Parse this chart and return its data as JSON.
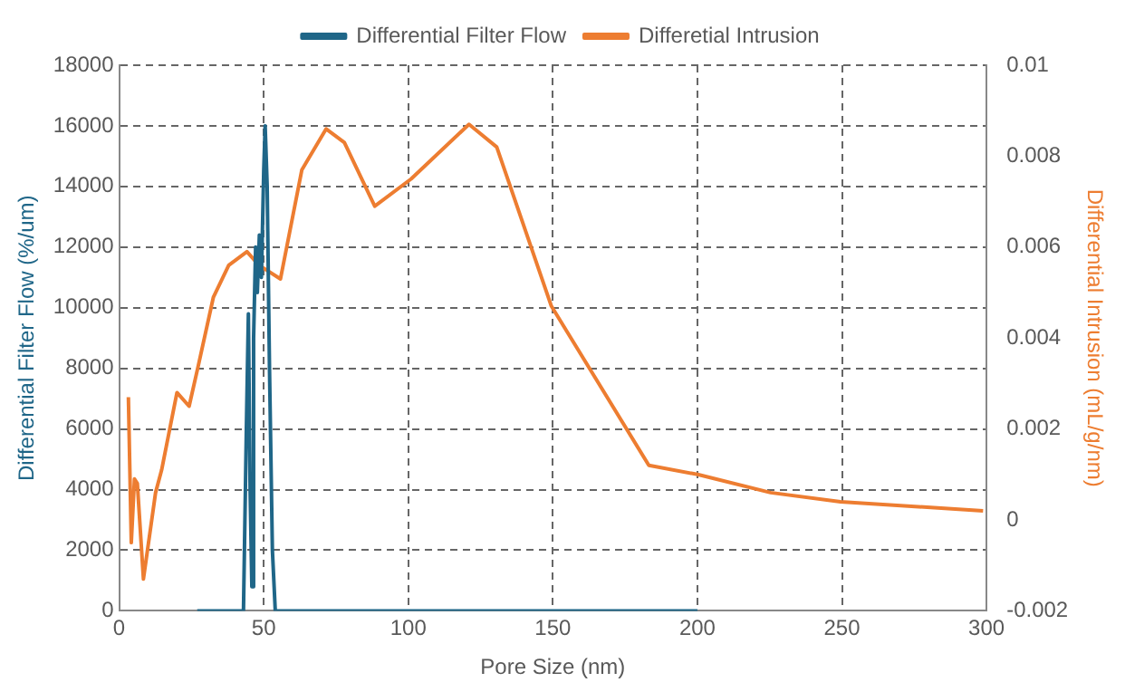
{
  "chart_data": {
    "type": "line",
    "xlabel": "Pore Size (nm)",
    "ylabel": "Differential Filter Flow (%/um)",
    "y2label": "Differential Intrusion (mL/g/nm)",
    "xlim": [
      0,
      300
    ],
    "xticks": [
      0,
      50,
      100,
      150,
      200,
      250,
      300
    ],
    "ylim": [
      0,
      18000
    ],
    "yticks": [
      0,
      2000,
      4000,
      6000,
      8000,
      10000,
      12000,
      14000,
      16000,
      18000
    ],
    "y2lim": [
      -0.002,
      0.01
    ],
    "y2ticks": [
      -0.002,
      0,
      0.002,
      0.004,
      0.006,
      0.008,
      0.01
    ],
    "grid": true,
    "legend": "top",
    "marker": "none",
    "line_style": "solid",
    "series": [
      {
        "name": "Differential Filter Flow",
        "color": "#1f6688",
        "x": [
          27,
          43,
          44,
          44.7,
          45.3,
          45.9,
          46.5,
          47.2,
          47.8,
          48.5,
          49.2,
          50,
          50.5,
          51.2,
          52,
          53,
          54,
          200
        ],
        "values": [
          0,
          0,
          6000,
          9800,
          4000,
          800,
          9000,
          12000,
          10500,
          12400,
          11000,
          14500,
          16000,
          14000,
          8000,
          2000,
          0,
          0
        ]
      },
      {
        "name": "Differetial Intrusion",
        "color": "#ed7d31",
        "axis": "y2",
        "x": [
          3.2,
          4.2,
          5.3,
          6.3,
          8.4,
          12.6,
          14.7,
          20,
          24.2,
          27.4,
          32.6,
          37.9,
          44.2,
          48.4,
          55.8,
          63.2,
          71.6,
          77.9,
          88.4,
          101,
          121,
          130.6,
          149.5,
          183.2,
          200,
          225.3,
          249.5,
          298.8
        ],
        "values": [
          0.0027,
          -0.0005,
          0.0009,
          0.0008,
          -0.0013,
          0.0006,
          0.0011,
          0.0028,
          0.0025,
          0.0034,
          0.0049,
          0.0056,
          0.0059,
          0.0056,
          0.0053,
          0.0077,
          0.0086,
          0.0083,
          0.0069,
          0.0075,
          0.0087,
          0.0082,
          0.0047,
          0.0012,
          0.001,
          0.0006,
          0.0004,
          0.0002
        ]
      }
    ]
  }
}
